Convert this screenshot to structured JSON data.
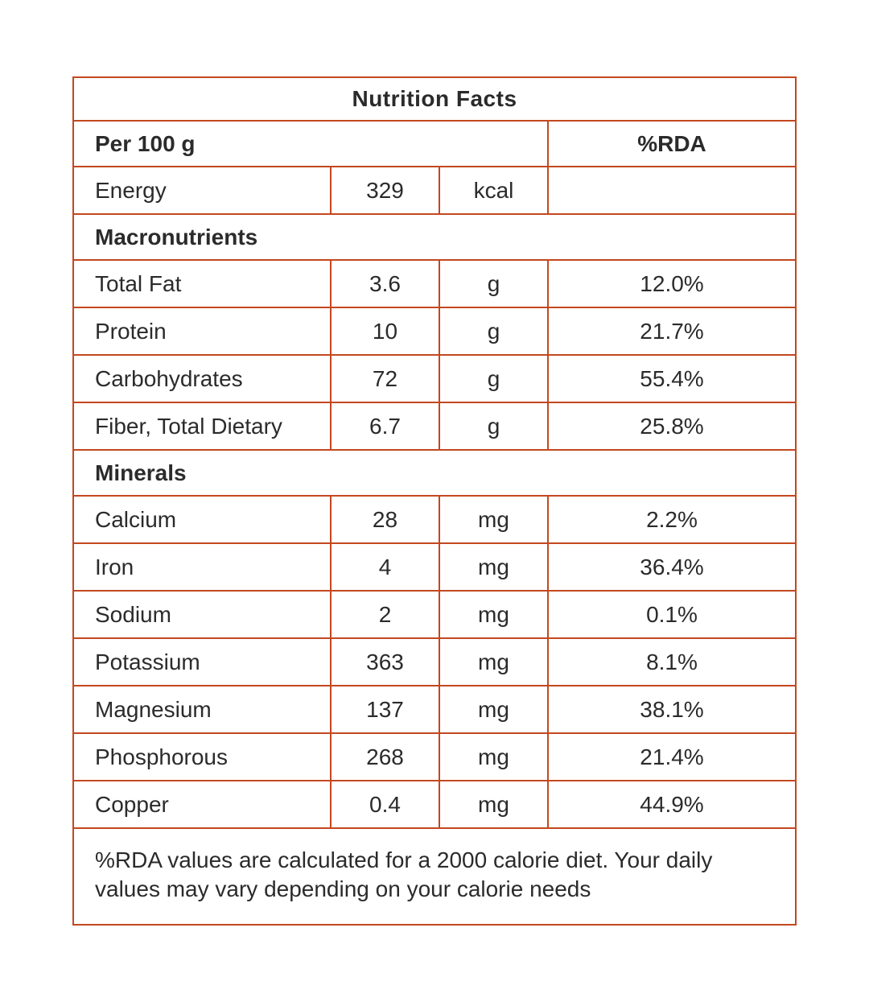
{
  "title": "Nutrition Facts",
  "header": {
    "serving": "Per 100 g",
    "rda_label": "%RDA"
  },
  "rows": [
    {
      "type": "data",
      "name": "Energy",
      "value": "329",
      "unit": "kcal",
      "rda": ""
    },
    {
      "type": "section",
      "label": "Macronutrients"
    },
    {
      "type": "data",
      "name": "Total Fat",
      "value": "3.6",
      "unit": "g",
      "rda": "12.0%"
    },
    {
      "type": "data",
      "name": "Protein",
      "value": "10",
      "unit": "g",
      "rda": "21.7%"
    },
    {
      "type": "data",
      "name": "Carbohydrates",
      "value": "72",
      "unit": "g",
      "rda": "55.4%"
    },
    {
      "type": "data",
      "name": "Fiber, Total Dietary",
      "value": "6.7",
      "unit": "g",
      "rda": "25.8%"
    },
    {
      "type": "section",
      "label": "Minerals"
    },
    {
      "type": "data",
      "name": "Calcium",
      "value": "28",
      "unit": "mg",
      "rda": "2.2%"
    },
    {
      "type": "data",
      "name": "Iron",
      "value": "4",
      "unit": "mg",
      "rda": "36.4%"
    },
    {
      "type": "data",
      "name": "Sodium",
      "value": "2",
      "unit": "mg",
      "rda": "0.1%"
    },
    {
      "type": "data",
      "name": "Potassium",
      "value": "363",
      "unit": "mg",
      "rda": "8.1%"
    },
    {
      "type": "data",
      "name": "Magnesium",
      "value": "137",
      "unit": "mg",
      "rda": "38.1%"
    },
    {
      "type": "data",
      "name": "Phosphorous",
      "value": "268",
      "unit": "mg",
      "rda": "21.4%"
    },
    {
      "type": "data",
      "name": "Copper",
      "value": "0.4",
      "unit": "mg",
      "rda": "44.9%"
    }
  ],
  "footer": "%RDA values are calculated for a 2000 calorie diet. Your daily values may vary depending on your calorie needs",
  "colors": {
    "border": "#c3481f",
    "text": "#2b2b2b"
  }
}
